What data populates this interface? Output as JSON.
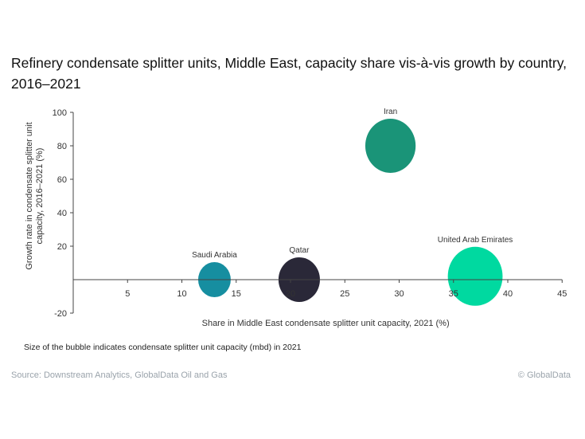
{
  "chart_data": {
    "type": "bubble",
    "title": "Refinery condensate splitter units, Middle East, capacity share vis-à-vis growth by country, 2016–2021",
    "xlabel": "Share in Middle East condensate splitter unit capacity, 2021 (%)",
    "ylabel": "Growth rate in condensate splitter unit capacity, 2016–2021 (%)",
    "xlim": [
      0,
      45
    ],
    "ylim": [
      -20,
      100
    ],
    "xticks": [
      "5",
      "10",
      "15",
      "20",
      "25",
      "30",
      "35",
      "40",
      "45"
    ],
    "yticks": [
      "100",
      "80",
      "60",
      "40",
      "20",
      "-20"
    ],
    "grid": false,
    "points": [
      {
        "label": "Iran",
        "x": 29.2,
        "y": 80,
        "size": 34,
        "color": "#1a9478"
      },
      {
        "label": "Saudi Arabia",
        "x": 13,
        "y": 0,
        "size": 22,
        "color": "#168ea0"
      },
      {
        "label": "Qatar",
        "x": 20.8,
        "y": 0,
        "size": 28,
        "color": "#2a2838"
      },
      {
        "label": "United Arab Emirates",
        "x": 37,
        "y": 2,
        "size": 37,
        "color": "#00d9a0"
      }
    ],
    "note": "Size of the bubble indicates condensate splitter unit capacity (mbd) in 2021"
  },
  "footer": {
    "source": "Source: Downstream Analytics, GlobalData Oil and Gas",
    "copyright": "© GlobalData"
  }
}
